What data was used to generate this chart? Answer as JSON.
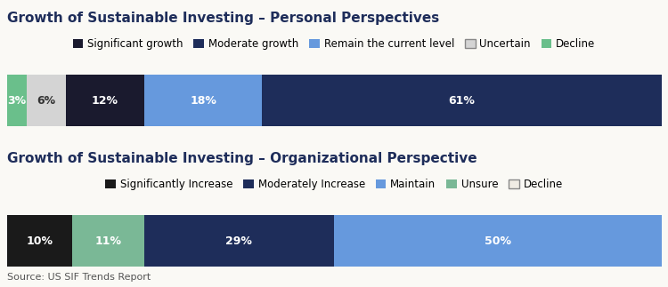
{
  "chart1": {
    "title": "Growth of Sustainable Investing – Personal Perspectives",
    "segments": [
      {
        "label": "Decline",
        "value": 3,
        "color": "#6abf8b",
        "text_color": "#ffffff"
      },
      {
        "label": "Uncertain",
        "value": 6,
        "color": "#d4d4d4",
        "text_color": "#333333"
      },
      {
        "label": "Significant growth",
        "value": 12,
        "color": "#1a1a2e",
        "text_color": "#ffffff"
      },
      {
        "label": "Remain the current level",
        "value": 18,
        "color": "#6699dd",
        "text_color": "#ffffff"
      },
      {
        "label": "Moderate growth",
        "value": 61,
        "color": "#1e2d5a",
        "text_color": "#ffffff"
      }
    ],
    "legend_order": [
      "Significant growth",
      "Moderate growth",
      "Remain the current level",
      "Uncertain",
      "Decline"
    ]
  },
  "chart2": {
    "title": "Growth of Sustainable Investing – Organizational Perspective",
    "segments": [
      {
        "label": "Significantly Increase",
        "value": 10,
        "color": "#1a1a1a",
        "text_color": "#ffffff"
      },
      {
        "label": "Unsure",
        "value": 11,
        "color": "#7ab896",
        "text_color": "#ffffff"
      },
      {
        "label": "Moderately Increase",
        "value": 29,
        "color": "#1e2d5a",
        "text_color": "#ffffff"
      },
      {
        "label": "Maintain",
        "value": 50,
        "color": "#6699dd",
        "text_color": "#ffffff"
      }
    ],
    "legend_order": [
      "Significantly Increase",
      "Moderately Increase",
      "Maintain",
      "Unsure",
      "Decline"
    ],
    "extra_segment": {
      "label": "Decline",
      "value": 0,
      "color": "#f0ece4"
    }
  },
  "source": "Source: US SIF Trends Report",
  "background_color": "#faf9f5",
  "title_color": "#1e2d5a",
  "title_fontsize": 11,
  "legend_fontsize": 8.5,
  "bar_label_fontsize": 9
}
